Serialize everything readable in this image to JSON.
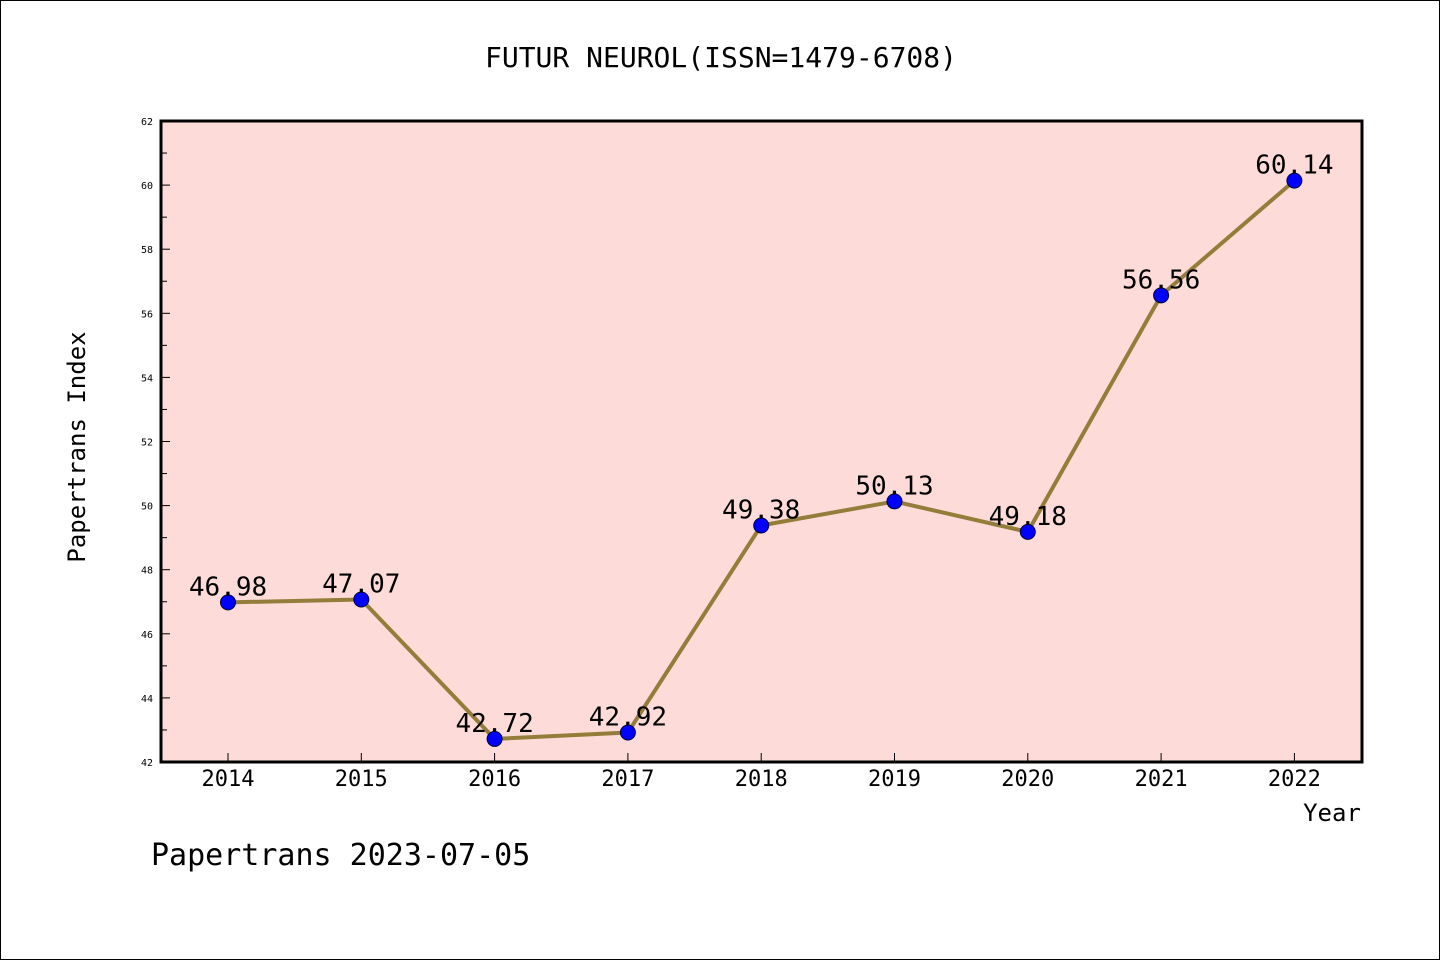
{
  "chart_data": {
    "type": "line",
    "title": "FUTUR NEUROL(ISSN=1479-6708)",
    "xlabel": "Year",
    "ylabel": "Papertrans Index",
    "footer": "Papertrans 2023-07-05",
    "x": [
      "2014",
      "2015",
      "2016",
      "2017",
      "2018",
      "2019",
      "2020",
      "2021",
      "2022"
    ],
    "series": [
      {
        "values": [
          46.98,
          47.07,
          42.72,
          42.92,
          49.38,
          50.13,
          49.18,
          56.56,
          60.14
        ],
        "labels": [
          "46.98",
          "47.07",
          "42.72",
          "42.92",
          "49.38",
          "50.13",
          "49.18",
          "56.56",
          "60.14"
        ]
      }
    ],
    "yticks": [
      "42",
      "44",
      "46",
      "48",
      "50",
      "52",
      "54",
      "56",
      "58",
      "60",
      "62"
    ],
    "ylim": [
      42,
      62
    ],
    "grid": false,
    "colors": {
      "plot_background": "#fddbd8",
      "line": "#947d3a",
      "marker": "#0000ff",
      "frame": "#000000"
    }
  }
}
